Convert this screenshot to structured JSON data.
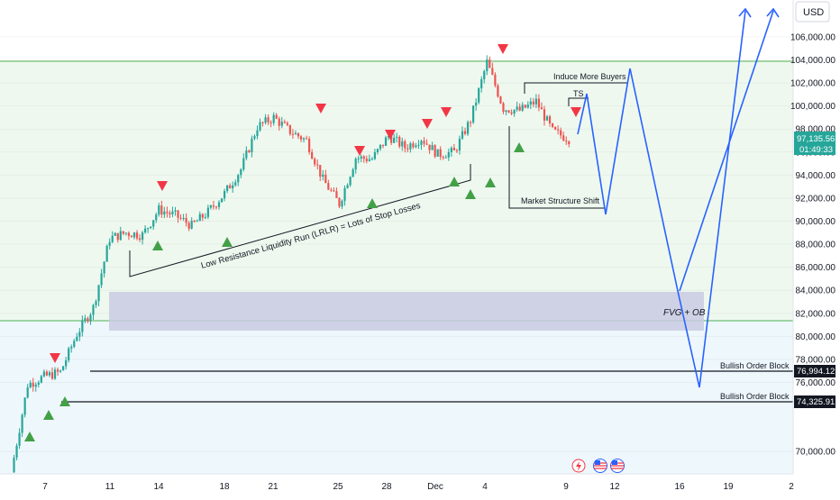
{
  "currency_button": "USD",
  "price_axis": {
    "ticks": [
      "106,000.00",
      "104,000.00",
      "102,000.00",
      "100,000.00",
      "98,000.00",
      "96,000.00",
      "94,000.00",
      "92,000.00",
      "90,000.00",
      "88,000.00",
      "86,000.00",
      "84,000.00",
      "82,000.00",
      "80,000.00",
      "78,000.00",
      "76,000.00",
      "70,000.00"
    ],
    "current_price": "97,135.56",
    "countdown": "01:49:33",
    "levels": [
      "76,994.12",
      "74,325.91"
    ]
  },
  "time_axis": {
    "ticks": [
      "7",
      "11",
      "14",
      "18",
      "21",
      "25",
      "28",
      "Dec",
      "4",
      "9",
      "12",
      "16",
      "19",
      "2"
    ]
  },
  "annotations": {
    "induce": "Induce More Buyers",
    "ts": "TS",
    "mss": "Market Structure Shift",
    "lrlr": "Low Resistance Liquidity Run (LRLR) = Lots of Stop Losses",
    "fvg": "FVG + OB",
    "bob1": "Bullish Order Block",
    "bob2": "Bullish Order Block"
  },
  "chart_data": {
    "type": "candlestick",
    "y_unit": "USD",
    "ylim": [
      68000,
      108500
    ],
    "x_range": [
      "Nov 6",
      "Jan 2"
    ],
    "price_path": [
      {
        "x": "Nov 6",
        "y": 68200
      },
      {
        "x": "Nov 7",
        "y": 75800
      },
      {
        "x": "Nov 8",
        "y": 76500
      },
      {
        "x": "Nov 9",
        "y": 76900
      },
      {
        "x": "Nov 10",
        "y": 80200
      },
      {
        "x": "Nov 11",
        "y": 82500
      },
      {
        "x": "Nov 12",
        "y": 88500
      },
      {
        "x": "Nov 13",
        "y": 89000
      },
      {
        "x": "Nov 14",
        "y": 88800
      },
      {
        "x": "Nov 15",
        "y": 91000
      },
      {
        "x": "Nov 16",
        "y": 90500
      },
      {
        "x": "Nov 17",
        "y": 89600
      },
      {
        "x": "Nov 18",
        "y": 90800
      },
      {
        "x": "Nov 19",
        "y": 92400
      },
      {
        "x": "Nov 20",
        "y": 94500
      },
      {
        "x": "Nov 21",
        "y": 98200
      },
      {
        "x": "Nov 22",
        "y": 99000
      },
      {
        "x": "Nov 23",
        "y": 97800
      },
      {
        "x": "Nov 24",
        "y": 97000
      },
      {
        "x": "Nov 25",
        "y": 93600
      },
      {
        "x": "Nov 26",
        "y": 91500
      },
      {
        "x": "Nov 27",
        "y": 95500
      },
      {
        "x": "Nov 28",
        "y": 95400
      },
      {
        "x": "Nov 29",
        "y": 97400
      },
      {
        "x": "Nov 30",
        "y": 96400
      },
      {
        "x": "Dec 1",
        "y": 97200
      },
      {
        "x": "Dec 2",
        "y": 95800
      },
      {
        "x": "Dec 3",
        "y": 96000
      },
      {
        "x": "Dec 4",
        "y": 98800
      },
      {
        "x": "Dec 5",
        "y": 103800
      },
      {
        "x": "Dec 6",
        "y": 99800
      },
      {
        "x": "Dec 7",
        "y": 99600
      },
      {
        "x": "Dec 8",
        "y": 100400
      },
      {
        "x": "Dec 9",
        "y": 97800
      },
      {
        "x": "Dec 10",
        "y": 97135.56
      }
    ],
    "projection": [
      {
        "x": "Dec 10",
        "y": 97135.56
      },
      {
        "x": "Dec 11",
        "y": 101200
      },
      {
        "x": "Dec 11",
        "y": 90800
      },
      {
        "x": "Dec 13",
        "y": 103000
      },
      {
        "x": "Dec 16",
        "y": 82500
      },
      {
        "x": "Dec 17",
        "y": 75700
      },
      {
        "x": "Dec 20",
        "y": 107500
      }
    ],
    "projection_2": [
      {
        "x": "Dec 16",
        "y": 82500
      },
      {
        "x": "Dec 22",
        "y": 107500
      }
    ],
    "colors": {
      "up": "#26a69a",
      "down": "#ef5350",
      "projection": "#2962ff",
      "zone": "#9598c7",
      "level": "#4caf50"
    },
    "zones": {
      "fvg_ob": [
        80400,
        83800
      ],
      "range": [
        81400,
        104000
      ]
    },
    "levels": [
      104000,
      81400,
      76994.12,
      74325.91
    ],
    "bullish_order_blocks": [
      76994.12,
      74325.91
    ],
    "market_structure_shift": 91200,
    "induce_more_buyers": 101900,
    "lrlr_trendline": [
      {
        "x": "Nov 12",
        "y": 85000
      },
      {
        "x": "Dec 3",
        "y": 94500
      }
    ],
    "up_markers": [
      {
        "x": "Nov 7",
        "y": 73100
      },
      {
        "x": "Nov 8",
        "y": 74000
      },
      {
        "x": "Nov 9",
        "y": 74300
      },
      {
        "x": "Nov 13",
        "y": 87600
      },
      {
        "x": "Nov 18",
        "y": 87900
      },
      {
        "x": "Nov 26",
        "y": 91400
      },
      {
        "x": "Dec 2",
        "y": 93400
      },
      {
        "x": "Dec 3",
        "y": 92300
      },
      {
        "x": "Dec 4",
        "y": 93500
      },
      {
        "x": "Dec 6",
        "y": 95700
      }
    ],
    "down_markers": [
      {
        "x": "Nov 8",
        "y": 79200
      },
      {
        "x": "Nov 14",
        "y": 93800
      },
      {
        "x": "Nov 24",
        "y": 99600
      },
      {
        "x": "Nov 26",
        "y": 96300
      },
      {
        "x": "Nov 28",
        "y": 97600
      },
      {
        "x": "Nov 30",
        "y": 98700
      },
      {
        "x": "Dec 1",
        "y": 99600
      },
      {
        "x": "Dec 5",
        "y": 106600
      },
      {
        "x": "Dec 10",
        "y": 99500
      }
    ]
  }
}
